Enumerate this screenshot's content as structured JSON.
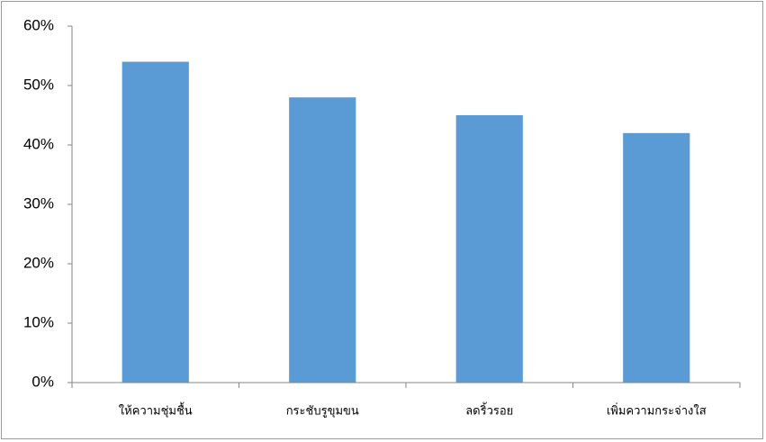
{
  "chart_data": {
    "type": "bar",
    "categories": [
      "ให้ความชุ่มชื้น",
      "กระชับรูขุมขน",
      "ลดริ้วรอย",
      "เพิ่มความกระจ่างใส"
    ],
    "values": [
      54,
      48,
      45,
      42
    ],
    "color": "#5b9bd5",
    "ylim": [
      0,
      60
    ],
    "yticks": [
      {
        "value": 0,
        "label": "0%"
      },
      {
        "value": 10,
        "label": "10%"
      },
      {
        "value": 20,
        "label": "20%"
      },
      {
        "value": 30,
        "label": "30%"
      },
      {
        "value": 40,
        "label": "40%"
      },
      {
        "value": 50,
        "label": "50%"
      },
      {
        "value": 60,
        "label": "60%"
      }
    ],
    "grid": false
  }
}
